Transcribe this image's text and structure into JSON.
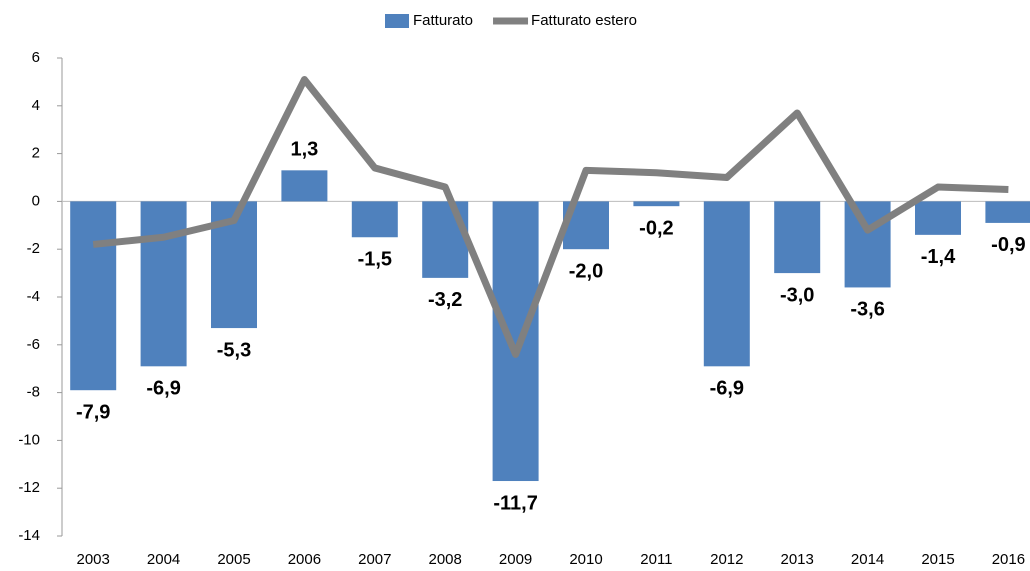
{
  "chart_data": {
    "type": "bar",
    "categories": [
      "2003",
      "2004",
      "2005",
      "2006",
      "2007",
      "2008",
      "2009",
      "2010",
      "2011",
      "2012",
      "2013",
      "2014",
      "2015",
      "2016"
    ],
    "series": [
      {
        "name": "Fatturato",
        "type": "bar",
        "color": "#4f81bd",
        "values": [
          -7.9,
          -6.9,
          -5.3,
          1.3,
          -1.5,
          -3.2,
          -11.7,
          -2.0,
          -0.2,
          -6.9,
          -3.0,
          -3.6,
          -1.4,
          -0.9
        ],
        "value_labels": [
          "-7,9",
          "-6,9",
          "-5,3",
          "1,3",
          "-1,5",
          "-3,2",
          "-11,7",
          "-2,0",
          "-0,2",
          "-6,9",
          "-3,0",
          "-3,6",
          "-1,4",
          "-0,9"
        ]
      },
      {
        "name": "Fatturato estero",
        "type": "line",
        "color": "#808080",
        "values": [
          -1.8,
          -1.5,
          -0.8,
          5.1,
          1.4,
          0.6,
          -6.4,
          1.3,
          1.2,
          1.0,
          3.7,
          -1.2,
          0.6,
          0.5
        ]
      }
    ],
    "ylim": [
      -14,
      6
    ],
    "yticks": [
      -14,
      -12,
      -10,
      -8,
      -6,
      -4,
      -2,
      0,
      2,
      4,
      6
    ],
    "legend": "top"
  }
}
